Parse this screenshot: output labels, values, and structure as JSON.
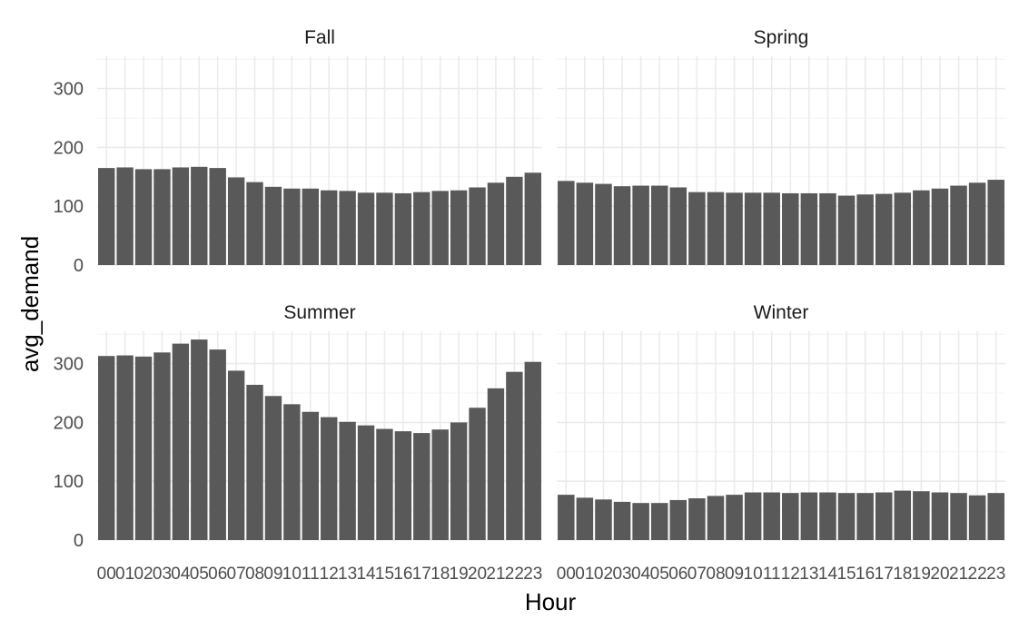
{
  "chart_data": {
    "type": "bar",
    "facet": "wrap",
    "xlabel": "Hour",
    "ylabel": "avg_demand",
    "ylim": [
      0,
      355
    ],
    "yticks": [
      0,
      100,
      200,
      300
    ],
    "grid": true,
    "bar_color": "#595959",
    "categories": [
      "00",
      "01",
      "02",
      "03",
      "04",
      "05",
      "06",
      "07",
      "08",
      "09",
      "10",
      "11",
      "12",
      "13",
      "14",
      "15",
      "16",
      "17",
      "18",
      "19",
      "20",
      "21",
      "22",
      "23"
    ],
    "panels": [
      {
        "name": "Fall",
        "values": [
          165,
          166,
          163,
          163,
          166,
          167,
          165,
          149,
          141,
          133,
          130,
          130,
          127,
          126,
          123,
          123,
          122,
          124,
          126,
          127,
          132,
          140,
          150,
          157
        ]
      },
      {
        "name": "Spring",
        "values": [
          143,
          140,
          138,
          134,
          135,
          135,
          132,
          124,
          124,
          123,
          123,
          123,
          122,
          122,
          122,
          118,
          120,
          121,
          123,
          127,
          130,
          135,
          140,
          145
        ]
      },
      {
        "name": "Summer",
        "values": [
          313,
          314,
          312,
          319,
          334,
          341,
          324,
          288,
          264,
          245,
          231,
          218,
          209,
          201,
          195,
          189,
          185,
          182,
          188,
          200,
          225,
          258,
          286,
          303
        ]
      },
      {
        "name": "Winter",
        "values": [
          77,
          72,
          69,
          65,
          63,
          63,
          68,
          71,
          75,
          77,
          81,
          81,
          80,
          81,
          81,
          80,
          80,
          81,
          84,
          83,
          81,
          80,
          76,
          80
        ]
      }
    ]
  }
}
